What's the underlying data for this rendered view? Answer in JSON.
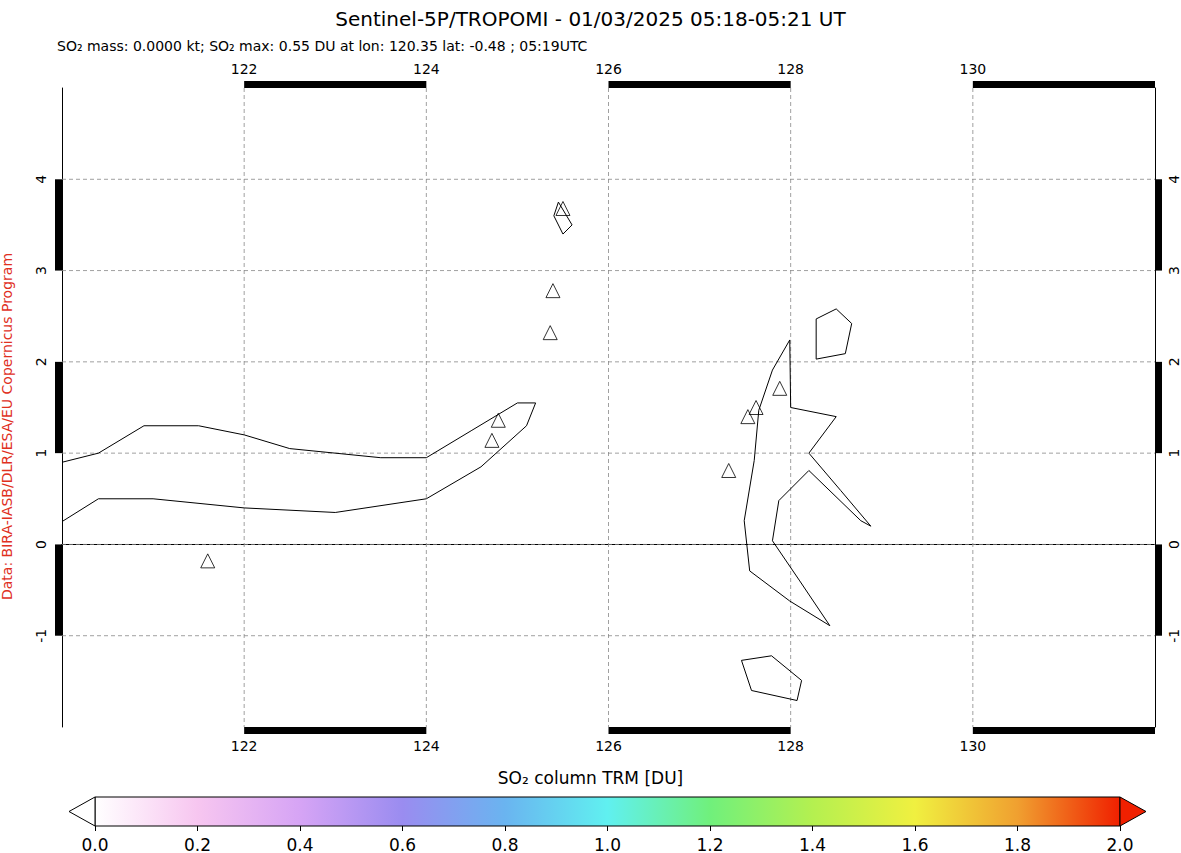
{
  "chart_data": {
    "type": "map",
    "title": "Sentinel-5P/TROPOMI - 01/03/2025 05:18-05:21 UT",
    "subtitle": "SO₂ mass: 0.0000 kt; SO₂ max: 0.55 DU at lon: 120.35 lat: -0.48 ; 05:19UTC",
    "credit": "Data: BIRA-IASB/DLR/ESA/EU Copernicus Program",
    "xlim": [
      120,
      132
    ],
    "xticks": [
      122,
      124,
      126,
      128,
      130
    ],
    "ylim": [
      -2,
      5
    ],
    "yticks": [
      -1,
      0,
      1,
      2,
      3,
      4
    ],
    "grid": true,
    "volcanoes": {
      "marker": "triangle",
      "lon": [
        121.6,
        124.72,
        124.79,
        125.36,
        125.39,
        125.5,
        127.32,
        127.53,
        127.62,
        127.88
      ],
      "lat": [
        -0.18,
        1.14,
        1.36,
        2.32,
        2.78,
        3.68,
        0.81,
        1.4,
        1.5,
        1.71
      ]
    },
    "coastlines": [
      [
        [
          120.0,
          0.9
        ],
        [
          120.4,
          1.0
        ],
        [
          120.9,
          1.3
        ],
        [
          121.5,
          1.3
        ],
        [
          122.0,
          1.2
        ],
        [
          122.5,
          1.05
        ],
        [
          123.0,
          1.0
        ],
        [
          123.5,
          0.95
        ],
        [
          124.0,
          0.95
        ],
        [
          124.5,
          1.25
        ],
        [
          125.0,
          1.55
        ],
        [
          125.2,
          1.55
        ],
        [
          125.1,
          1.3
        ],
        [
          124.6,
          0.85
        ],
        [
          124.0,
          0.5
        ],
        [
          123.0,
          0.35
        ],
        [
          122.0,
          0.4
        ],
        [
          121.0,
          0.5
        ],
        [
          120.4,
          0.5
        ],
        [
          120.0,
          0.25
        ]
      ],
      [
        [
          127.99,
          2.24
        ],
        [
          127.8,
          1.91
        ],
        [
          127.65,
          1.47
        ],
        [
          127.6,
          0.92
        ],
        [
          127.49,
          0.26
        ],
        [
          127.55,
          -0.29
        ],
        [
          127.99,
          -0.62
        ],
        [
          128.43,
          -0.89
        ],
        [
          128.1,
          -0.4
        ],
        [
          127.8,
          0.04
        ],
        [
          127.87,
          0.48
        ],
        [
          128.2,
          0.81
        ],
        [
          128.77,
          0.26
        ],
        [
          128.88,
          0.2
        ],
        [
          128.55,
          0.59
        ],
        [
          128.2,
          1.0
        ],
        [
          128.5,
          1.4
        ],
        [
          128.0,
          1.5
        ],
        [
          127.99,
          2.24
        ]
      ],
      [
        [
          128.28,
          2.47
        ],
        [
          128.5,
          2.58
        ],
        [
          128.67,
          2.42
        ],
        [
          128.6,
          2.09
        ],
        [
          128.28,
          2.03
        ],
        [
          128.28,
          2.47
        ]
      ],
      [
        [
          127.46,
          -1.27
        ],
        [
          127.79,
          -1.22
        ],
        [
          128.12,
          -1.49
        ],
        [
          128.07,
          -1.71
        ],
        [
          127.57,
          -1.6
        ],
        [
          127.46,
          -1.27
        ]
      ],
      [
        [
          125.45,
          3.75
        ],
        [
          125.6,
          3.5
        ],
        [
          125.5,
          3.4
        ],
        [
          125.4,
          3.6
        ],
        [
          125.45,
          3.75
        ]
      ]
    ],
    "colorbar": {
      "label": "SO₂ column TRM [DU]",
      "range": [
        0,
        2
      ],
      "ticks": [
        {
          "value": 0,
          "label": "0.0"
        },
        {
          "value": 0.2,
          "label": "0.2"
        },
        {
          "value": 0.4,
          "label": "0.4"
        },
        {
          "value": 0.6,
          "label": "0.6"
        },
        {
          "value": 0.8,
          "label": "0.8"
        },
        {
          "value": 1,
          "label": "1.0"
        },
        {
          "value": 1.2,
          "label": "1.2"
        },
        {
          "value": 1.4,
          "label": "1.4"
        },
        {
          "value": 1.6,
          "label": "1.6"
        },
        {
          "value": 1.8,
          "label": "1.8"
        },
        {
          "value": 2,
          "label": "2.0"
        }
      ],
      "colors": [
        "#ffffff",
        "#f7c6f0",
        "#d6a4f5",
        "#9a8cf0",
        "#6ab4f0",
        "#60f0f0",
        "#70f07c",
        "#b4f050",
        "#f0f040",
        "#f0a030",
        "#f02000"
      ]
    }
  }
}
